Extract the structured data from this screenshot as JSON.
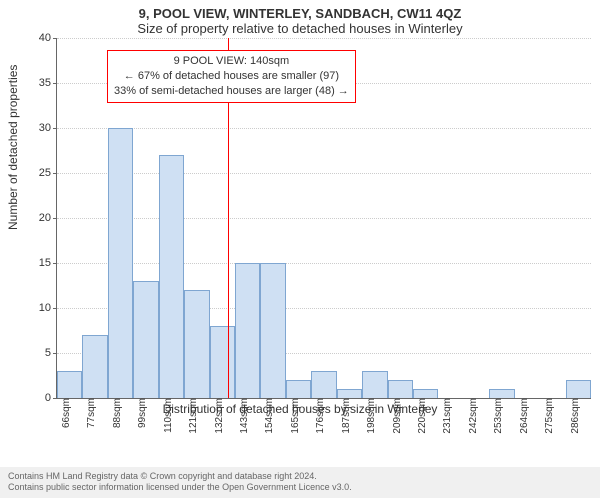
{
  "title_line1": "9, POOL VIEW, WINTERLEY, SANDBACH, CW11 4QZ",
  "title_line2": "Size of property relative to detached houses in Winterley",
  "ylabel": "Number of detached properties",
  "xlabel": "Distribution of detached houses by size in Winterley",
  "chart": {
    "type": "histogram",
    "ylim": [
      0,
      40
    ],
    "ytick_step": 5,
    "x_start": 66,
    "x_step": 11,
    "x_count": 21,
    "x_unit": "sqm",
    "bar_color": "#cfe0f3",
    "bar_border": "#7fa6d1",
    "grid_color": "#cccccc",
    "axis_color": "#666666",
    "background_color": "#ffffff",
    "values": [
      3,
      7,
      30,
      13,
      27,
      12,
      8,
      15,
      15,
      2,
      3,
      1,
      3,
      2,
      1,
      0,
      0,
      1,
      0,
      0,
      2
    ]
  },
  "marker": {
    "x_value": 140,
    "line_color": "#ff0000",
    "callout_border": "#ff0000",
    "line1": "9 POOL VIEW: 140sqm",
    "line2": "← 67% of detached houses are smaller (97)",
    "line3": "33% of semi-detached houses are larger (48) →"
  },
  "footer": {
    "line1": "Contains HM Land Registry data © Crown copyright and database right 2024.",
    "line2": "Contains public sector information licensed under the Open Government Licence v3.0."
  }
}
